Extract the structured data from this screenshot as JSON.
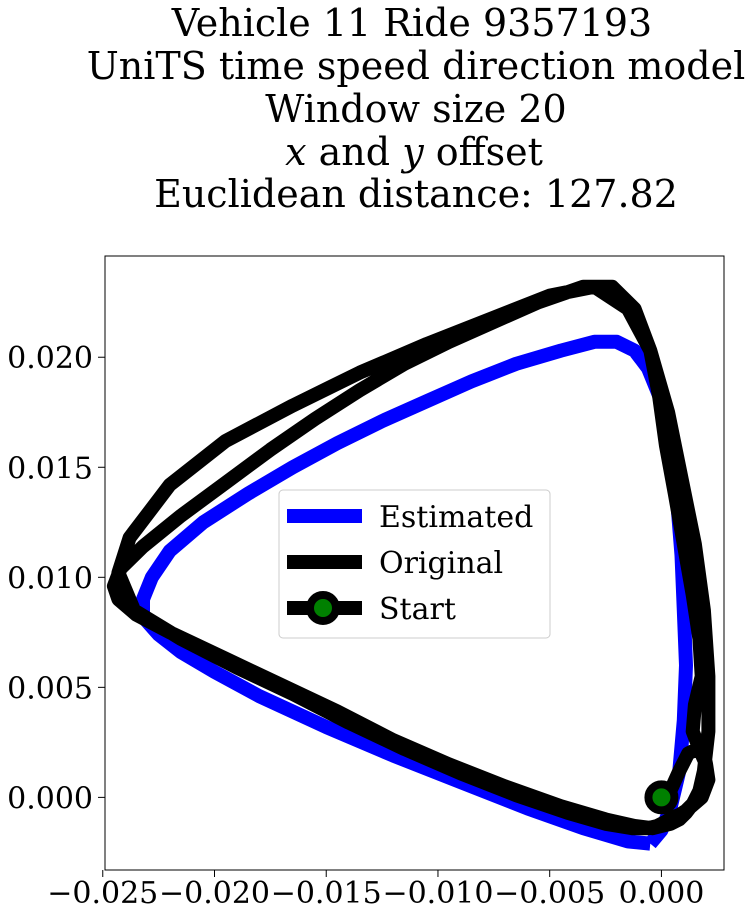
{
  "chart_data": {
    "type": "line",
    "title_lines": [
      "Vehicle 11 Ride 9357193",
      "UniTS time speed direction model",
      "Window size 20",
      "x and y offset",
      "Euclidean distance: 127.82"
    ],
    "title_line4": {
      "x": "x",
      "mid": " and ",
      "y": "y",
      "end": " offset"
    },
    "xlabel": "",
    "ylabel": "",
    "xlim": [
      -0.0249,
      0.0028
    ],
    "ylim": [
      -0.0033,
      0.0246
    ],
    "xticks": [
      -0.025,
      -0.02,
      -0.015,
      -0.01,
      -0.005,
      0.0
    ],
    "xtick_labels": [
      "−0.025",
      "−0.020",
      "−0.015",
      "−0.010",
      "−0.005",
      "0.000"
    ],
    "yticks": [
      0.0,
      0.005,
      0.01,
      0.015,
      0.02
    ],
    "ytick_labels": [
      "0.000",
      "0.005",
      "0.010",
      "0.015",
      "0.020"
    ],
    "grid": false,
    "legend": {
      "placement": "center",
      "entries": [
        {
          "label": "Estimated",
          "color": "#0000ff"
        },
        {
          "label": "Original",
          "color": "#000000"
        },
        {
          "label": "Start",
          "color": "#000000",
          "marker_color": "#008000"
        }
      ]
    },
    "series": [
      {
        "name": "Estimated",
        "color": "#0000ff",
        "x": [
          -0.0005,
          -0.0015,
          -0.0035,
          -0.006,
          -0.009,
          -0.012,
          -0.015,
          -0.018,
          -0.02,
          -0.0215,
          -0.0225,
          -0.0232,
          -0.0232,
          -0.0228,
          -0.022,
          -0.0205,
          -0.0185,
          -0.0165,
          -0.0145,
          -0.0125,
          -0.0105,
          -0.0085,
          -0.0065,
          -0.0045,
          -0.003,
          -0.002,
          -0.0012,
          -0.0006,
          0.0,
          0.0004,
          0.0007,
          0.0009,
          0.001,
          0.0011,
          0.001,
          0.0008,
          0.0004,
          0.0,
          -0.0005
        ],
        "y": [
          -0.0021,
          -0.002,
          -0.0014,
          -0.0005,
          0.0007,
          0.0019,
          0.0032,
          0.0046,
          0.0057,
          0.0066,
          0.0074,
          0.0082,
          0.009,
          0.01,
          0.0112,
          0.0125,
          0.0138,
          0.015,
          0.0161,
          0.0171,
          0.018,
          0.0189,
          0.0197,
          0.0203,
          0.0207,
          0.0207,
          0.0203,
          0.0195,
          0.018,
          0.016,
          0.0135,
          0.011,
          0.0085,
          0.006,
          0.0035,
          0.0012,
          -0.0005,
          -0.0015,
          -0.0021
        ]
      },
      {
        "name": "Original",
        "color": "#000000",
        "x": [
          0.0,
          0.001,
          0.0018,
          0.0021,
          0.002,
          0.0017,
          0.0014,
          0.0015,
          0.0018,
          0.0017,
          0.0014,
          0.001,
          0.0006,
          0.0002,
          -0.0001,
          -0.0005,
          -0.0012,
          -0.0022,
          -0.0035,
          -0.0055,
          -0.0075,
          -0.0095,
          -0.0115,
          -0.0135,
          -0.0155,
          -0.0175,
          -0.0195,
          -0.0215,
          -0.0232,
          -0.0242,
          -0.0245,
          -0.0243,
          -0.0235,
          -0.022,
          -0.0195,
          -0.017,
          -0.0145,
          -0.012,
          -0.0095,
          -0.007,
          -0.0045,
          -0.0025,
          -0.0012,
          -0.0004,
          0.0,
          0.0004,
          0.0008,
          0.0011,
          0.0014,
          0.0017,
          0.0019,
          0.0021,
          0.0021,
          0.0019,
          0.0015,
          0.0009,
          0.0003,
          -0.0005,
          -0.0015,
          -0.003,
          -0.005,
          -0.0075,
          -0.0105,
          -0.0135,
          -0.0165,
          -0.0195,
          -0.022,
          -0.0238,
          -0.0243,
          -0.0236,
          -0.0215,
          -0.019,
          -0.0165,
          -0.014,
          -0.0115,
          -0.009,
          -0.0065,
          -0.0042,
          -0.0025,
          -0.0013,
          -0.0006,
          -0.0002,
          0.0002,
          0.0005,
          0.0008,
          0.0011,
          0.0014,
          0.0017,
          0.0019,
          0.002,
          0.0019,
          0.0016,
          0.0012,
          0.0008,
          0.0004,
          0.0
        ],
        "y": [
          -0.0012,
          -0.0007,
          0.0,
          0.0008,
          0.0015,
          0.0022,
          0.003,
          0.0042,
          0.0055,
          0.0072,
          0.0092,
          0.0115,
          0.0138,
          0.016,
          0.0182,
          0.0203,
          0.0222,
          0.0232,
          0.0232,
          0.0225,
          0.0216,
          0.0207,
          0.0197,
          0.0185,
          0.0172,
          0.0158,
          0.0143,
          0.0128,
          0.0114,
          0.0104,
          0.0096,
          0.009,
          0.0083,
          0.0075,
          0.0063,
          0.0051,
          0.0039,
          0.0026,
          0.0015,
          0.0005,
          -0.0004,
          -0.001,
          -0.0013,
          -0.0014,
          -0.0013,
          -0.0012,
          -0.001,
          -0.0007,
          -0.0003,
          0.0003,
          0.0012,
          0.003,
          0.0055,
          0.0085,
          0.0115,
          0.0145,
          0.0175,
          0.0203,
          0.0222,
          0.0232,
          0.0228,
          0.0218,
          0.0206,
          0.0193,
          0.0178,
          0.0162,
          0.0142,
          0.0118,
          0.0102,
          0.0085,
          0.0072,
          0.0059,
          0.0047,
          0.0034,
          0.0022,
          0.0011,
          0.0001,
          -0.0007,
          -0.0012,
          -0.0014,
          -0.0014,
          -0.0013,
          -0.0011,
          -0.0009,
          -0.0008,
          -0.0006,
          -0.0003,
          0.0002,
          0.0008,
          0.0015,
          0.002,
          0.0022,
          0.002,
          0.0012,
          0.0003,
          -0.0003
        ]
      }
    ],
    "start_point": {
      "name": "Start",
      "x": 0.0,
      "y": 0.0,
      "marker_edge_color": "#000000",
      "marker_face_color": "#008000"
    }
  }
}
